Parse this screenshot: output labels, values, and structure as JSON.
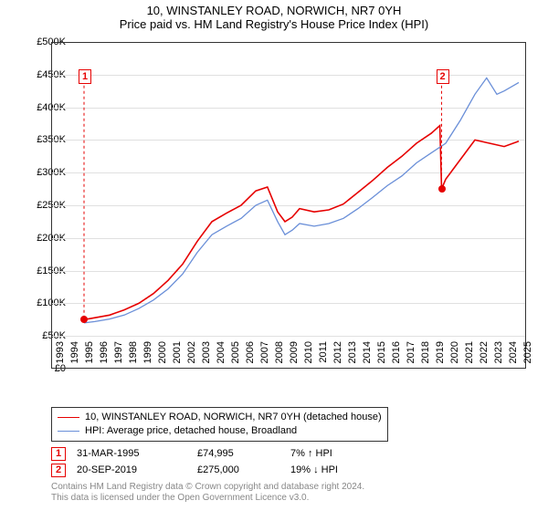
{
  "title_line1": "10, WINSTANLEY ROAD, NORWICH, NR7 0YH",
  "title_line2": "Price paid vs. HM Land Registry's House Price Index (HPI)",
  "chart": {
    "type": "line",
    "background_color": "#ffffff",
    "grid_color": "#e0e0e0",
    "border_color": "#333333",
    "x_axis": {
      "min": 1993,
      "max": 2025.5,
      "ticks": [
        1993,
        1994,
        1995,
        1996,
        1997,
        1998,
        1999,
        2000,
        2001,
        2002,
        2003,
        2004,
        2005,
        2006,
        2007,
        2008,
        2009,
        2010,
        2011,
        2012,
        2013,
        2014,
        2015,
        2016,
        2017,
        2018,
        2019,
        2020,
        2021,
        2022,
        2023,
        2024,
        2025
      ],
      "label_fontsize": 11
    },
    "y_axis": {
      "min": 0,
      "max": 500000,
      "ticks": [
        0,
        50000,
        100000,
        150000,
        200000,
        250000,
        300000,
        350000,
        400000,
        450000,
        500000
      ],
      "tick_labels": [
        "£0",
        "£50K",
        "£100K",
        "£150K",
        "£200K",
        "£250K",
        "£300K",
        "£350K",
        "£400K",
        "£450K",
        "£500K"
      ],
      "label_fontsize": 11
    },
    "series": [
      {
        "name": "10, WINSTANLEY ROAD, NORWICH, NR7 0YH (detached house)",
        "color": "#e60000",
        "line_width": 1.6,
        "data": [
          [
            1995.25,
            74995
          ],
          [
            1996,
            78000
          ],
          [
            1997,
            82000
          ],
          [
            1998,
            90000
          ],
          [
            1999,
            100000
          ],
          [
            2000,
            115000
          ],
          [
            2001,
            135000
          ],
          [
            2002,
            160000
          ],
          [
            2003,
            195000
          ],
          [
            2004,
            225000
          ],
          [
            2005,
            238000
          ],
          [
            2006,
            250000
          ],
          [
            2007,
            272000
          ],
          [
            2007.8,
            278000
          ],
          [
            2008.5,
            240000
          ],
          [
            2009,
            225000
          ],
          [
            2009.5,
            232000
          ],
          [
            2010,
            245000
          ],
          [
            2011,
            240000
          ],
          [
            2012,
            243000
          ],
          [
            2013,
            252000
          ],
          [
            2014,
            270000
          ],
          [
            2015,
            288000
          ],
          [
            2016,
            308000
          ],
          [
            2017,
            325000
          ],
          [
            2018,
            345000
          ],
          [
            2019,
            360000
          ],
          [
            2019.6,
            372000
          ],
          [
            2019.72,
            275000
          ],
          [
            2020,
            290000
          ],
          [
            2021,
            320000
          ],
          [
            2022,
            350000
          ],
          [
            2023,
            345000
          ],
          [
            2024,
            340000
          ],
          [
            2025,
            348000
          ]
        ]
      },
      {
        "name": "HPI: Average price, detached house, Broadland",
        "color": "#6a8fd8",
        "line_width": 1.3,
        "data": [
          [
            1995.25,
            70000
          ],
          [
            1996,
            72000
          ],
          [
            1997,
            76000
          ],
          [
            1998,
            82000
          ],
          [
            1999,
            92000
          ],
          [
            2000,
            105000
          ],
          [
            2001,
            122000
          ],
          [
            2002,
            145000
          ],
          [
            2003,
            178000
          ],
          [
            2004,
            205000
          ],
          [
            2005,
            218000
          ],
          [
            2006,
            230000
          ],
          [
            2007,
            250000
          ],
          [
            2007.8,
            258000
          ],
          [
            2008.5,
            225000
          ],
          [
            2009,
            205000
          ],
          [
            2009.5,
            212000
          ],
          [
            2010,
            222000
          ],
          [
            2011,
            218000
          ],
          [
            2012,
            222000
          ],
          [
            2013,
            230000
          ],
          [
            2014,
            245000
          ],
          [
            2015,
            262000
          ],
          [
            2016,
            280000
          ],
          [
            2017,
            295000
          ],
          [
            2018,
            315000
          ],
          [
            2019,
            330000
          ],
          [
            2020,
            345000
          ],
          [
            2021,
            380000
          ],
          [
            2022,
            420000
          ],
          [
            2022.8,
            445000
          ],
          [
            2023.5,
            420000
          ],
          [
            2024,
            425000
          ],
          [
            2025,
            438000
          ]
        ]
      }
    ],
    "markers": [
      {
        "id": "1",
        "year": 1995.25,
        "dot_color": "#e60000",
        "dot_value": 74995,
        "badge_top_y": 458000
      },
      {
        "id": "2",
        "year": 2019.72,
        "dot_color": "#e60000",
        "dot_value": 275000,
        "badge_top_y": 458000
      }
    ]
  },
  "legend": {
    "items": [
      {
        "label": "10, WINSTANLEY ROAD, NORWICH, NR7 0YH (detached house)",
        "color": "#e60000",
        "width": 1.6
      },
      {
        "label": "HPI: Average price, detached house, Broadland",
        "color": "#6a8fd8",
        "width": 1.3
      }
    ]
  },
  "sales": [
    {
      "id": "1",
      "date": "31-MAR-1995",
      "price": "£74,995",
      "diff": "7% ↑ HPI"
    },
    {
      "id": "2",
      "date": "20-SEP-2019",
      "price": "£275,000",
      "diff": "19% ↓ HPI"
    }
  ],
  "footer_line1": "Contains HM Land Registry data © Crown copyright and database right 2024.",
  "footer_line2": "This data is licensed under the Open Government Licence v3.0."
}
